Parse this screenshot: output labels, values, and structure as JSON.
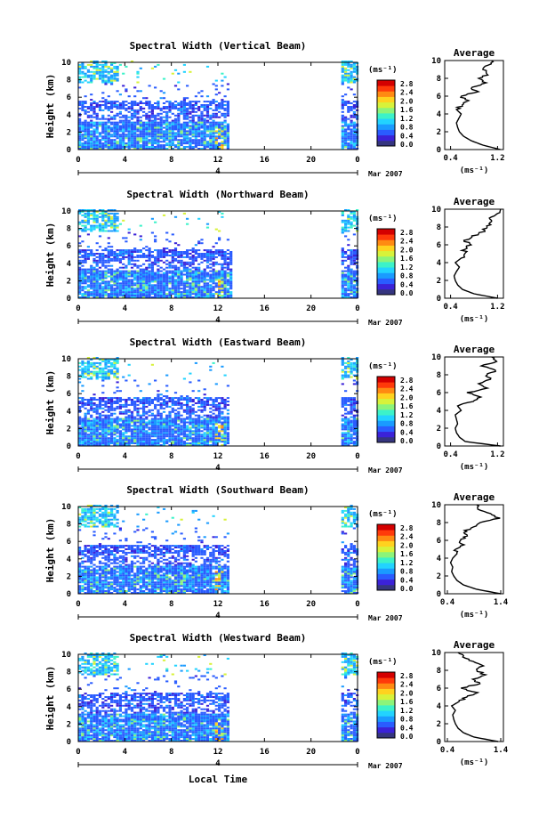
{
  "figure": {
    "xlabel": "Local Time",
    "date_label": "Mar 2007",
    "day_marker": "4",
    "colorbar_unit": "(ms⁻¹)",
    "colorbar_ticks": [
      "0.0",
      "0.4",
      "0.8",
      "1.2",
      "1.6",
      "2.0",
      "2.4",
      "2.8"
    ],
    "colorbar_colors": [
      "#35357f",
      "#3b22d8",
      "#2a5cff",
      "#1a9bff",
      "#22d3ff",
      "#3cf2c9",
      "#8cf47a",
      "#d8f23a",
      "#ffd21f",
      "#ff8a12",
      "#ff3a0a",
      "#d40000"
    ],
    "ylabel": "Height (km)",
    "avg_title": "Average",
    "avg_unit": "(ms⁻¹)"
  },
  "chart_data": [
    {
      "type": "heatmap",
      "title": "Spectral Width (Vertical Beam)",
      "xlabel": "Local Time",
      "ylabel": "Height (km)",
      "x_ticks": [
        "0",
        "4",
        "8",
        "12",
        "16",
        "20",
        "0"
      ],
      "xlim": [
        0,
        24
      ],
      "y_ticks": [
        "0",
        "2",
        "4",
        "6",
        "8",
        "10"
      ],
      "ylim": [
        0,
        10
      ],
      "data_segments": [
        [
          0,
          12.9
        ],
        [
          22.6,
          24
        ]
      ],
      "average_profile": {
        "xlabel": "(ms⁻¹)",
        "xlim": [
          0.3,
          1.3
        ],
        "x_ticks": [
          "0.4",
          "1.2"
        ],
        "x_tick_values": [
          0.4,
          1.2
        ],
        "height": [
          0,
          0.5,
          1,
          1.5,
          2,
          2.5,
          3,
          3.5,
          4,
          4.5,
          5,
          5.5,
          6,
          6.5,
          7,
          7.5,
          8,
          8.5,
          9,
          9.5,
          10
        ],
        "values": [
          1.25,
          0.95,
          0.75,
          0.62,
          0.55,
          0.52,
          0.5,
          0.54,
          0.58,
          0.5,
          0.6,
          0.68,
          0.55,
          0.85,
          0.75,
          1.0,
          0.9,
          1.05,
          0.95,
          1.05,
          1.1
        ]
      }
    },
    {
      "type": "heatmap",
      "title": "Spectral Width (Northward Beam)",
      "xlabel": "Local Time",
      "ylabel": "Height (km)",
      "x_ticks": [
        "0",
        "4",
        "8",
        "12",
        "16",
        "20",
        "0"
      ],
      "xlim": [
        0,
        24
      ],
      "y_ticks": [
        "0",
        "2",
        "4",
        "6",
        "8",
        "10"
      ],
      "ylim": [
        0,
        10
      ],
      "data_segments": [
        [
          0,
          13.2
        ],
        [
          22.6,
          24
        ]
      ],
      "average_profile": {
        "xlabel": "(ms⁻¹)",
        "xlim": [
          0.3,
          1.3
        ],
        "x_ticks": [
          "0.4",
          "1.2"
        ],
        "x_tick_values": [
          0.4,
          1.2
        ],
        "height": [
          0,
          0.5,
          1,
          1.5,
          2,
          2.5,
          3,
          3.5,
          4,
          4.5,
          5,
          5.5,
          6,
          6.5,
          7,
          7.5,
          8,
          8.5,
          9,
          9.5,
          10
        ],
        "values": [
          1.2,
          0.8,
          0.6,
          0.52,
          0.48,
          0.46,
          0.5,
          0.55,
          0.48,
          0.58,
          0.66,
          0.62,
          0.72,
          0.65,
          0.8,
          0.95,
          1.0,
          1.1,
          1.05,
          1.2,
          1.25
        ]
      }
    },
    {
      "type": "heatmap",
      "title": "Spectral Width (Eastward Beam)",
      "xlabel": "Local Time",
      "ylabel": "Height (km)",
      "x_ticks": [
        "0",
        "4",
        "8",
        "12",
        "16",
        "20",
        "0"
      ],
      "xlim": [
        0,
        24
      ],
      "y_ticks": [
        "0",
        "2",
        "4",
        "6",
        "8",
        "10"
      ],
      "ylim": [
        0,
        10
      ],
      "data_segments": [
        [
          0,
          12.9
        ],
        [
          22.6,
          24
        ]
      ],
      "average_profile": {
        "xlabel": "(ms⁻¹)",
        "xlim": [
          0.3,
          1.3
        ],
        "x_ticks": [
          "0.4",
          "1.2"
        ],
        "x_tick_values": [
          0.4,
          1.2
        ],
        "height": [
          0,
          0.5,
          1,
          1.5,
          2,
          2.5,
          3,
          3.5,
          4,
          4.5,
          5,
          5.5,
          6,
          6.5,
          7,
          7.5,
          8,
          8.5,
          9,
          9.5,
          10
        ],
        "values": [
          1.25,
          0.65,
          0.55,
          0.5,
          0.48,
          0.52,
          0.5,
          0.48,
          0.58,
          0.52,
          0.75,
          0.9,
          0.7,
          1.0,
          0.85,
          1.1,
          1.0,
          1.2,
          0.95,
          1.15,
          1.1
        ]
      }
    },
    {
      "type": "heatmap",
      "title": "Spectral Width (Southward Beam)",
      "xlabel": "Local Time",
      "ylabel": "Height (km)",
      "x_ticks": [
        "0",
        "4",
        "8",
        "12",
        "16",
        "20",
        "0"
      ],
      "xlim": [
        0,
        24
      ],
      "y_ticks": [
        "0",
        "2",
        "4",
        "6",
        "8",
        "10"
      ],
      "ylim": [
        0,
        10
      ],
      "data_segments": [
        [
          0,
          12.9
        ],
        [
          22.6,
          24
        ]
      ],
      "average_profile": {
        "xlabel": "(ms⁻¹)",
        "xlim": [
          0.35,
          1.45
        ],
        "x_ticks": [
          "0.4",
          "1.4"
        ],
        "x_tick_values": [
          0.4,
          1.4
        ],
        "height": [
          0,
          0.5,
          1,
          1.5,
          2,
          2.5,
          3,
          3.5,
          4,
          4.5,
          5,
          5.5,
          6,
          6.5,
          7,
          7.5,
          8,
          8.5,
          9,
          9.5,
          10
        ],
        "values": [
          1.4,
          0.95,
          0.7,
          0.58,
          0.52,
          0.48,
          0.5,
          0.46,
          0.5,
          0.58,
          0.55,
          0.68,
          0.62,
          0.78,
          0.72,
          0.88,
          1.05,
          1.35,
          1.2,
          1.0,
          0.95
        ]
      }
    },
    {
      "type": "heatmap",
      "title": "Spectral Width (Westward Beam)",
      "xlabel": "Local Time",
      "ylabel": "Height (km)",
      "x_ticks": [
        "0",
        "4",
        "8",
        "12",
        "16",
        "20",
        "0"
      ],
      "xlim": [
        0,
        24
      ],
      "y_ticks": [
        "0",
        "2",
        "4",
        "6",
        "8",
        "10"
      ],
      "ylim": [
        0,
        10
      ],
      "data_segments": [
        [
          0,
          12.9
        ],
        [
          22.6,
          24
        ]
      ],
      "average_profile": {
        "xlabel": "(ms⁻¹)",
        "xlim": [
          0.35,
          1.45
        ],
        "x_ticks": [
          "0.4",
          "1.4"
        ],
        "x_tick_values": [
          0.4,
          1.4
        ],
        "height": [
          0,
          0.5,
          1,
          1.5,
          2,
          2.5,
          3,
          3.5,
          4,
          4.5,
          5,
          5.5,
          6,
          6.5,
          7,
          7.5,
          8,
          8.5,
          9,
          9.5,
          10
        ],
        "values": [
          1.35,
          0.9,
          0.7,
          0.6,
          0.55,
          0.52,
          0.5,
          0.55,
          0.48,
          0.62,
          0.75,
          0.95,
          0.65,
          1.0,
          0.9,
          1.1,
          0.95,
          1.05,
          0.85,
          0.7,
          0.6
        ]
      }
    }
  ]
}
